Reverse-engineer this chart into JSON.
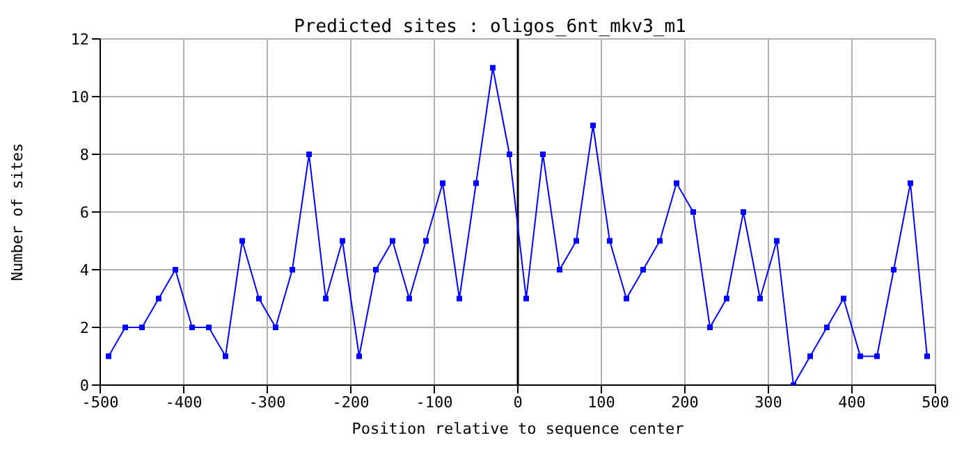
{
  "chart_data": {
    "type": "line",
    "title": "Predicted sites : oligos_6nt_mkv3_m1",
    "xlabel": "Position relative to sequence center",
    "ylabel": "Number of sites",
    "x": [
      -490,
      -470,
      -450,
      -430,
      -410,
      -390,
      -370,
      -350,
      -330,
      -310,
      -290,
      -270,
      -250,
      -230,
      -210,
      -190,
      -170,
      -150,
      -130,
      -110,
      -90,
      -70,
      -50,
      -30,
      -10,
      10,
      30,
      50,
      70,
      90,
      110,
      130,
      150,
      170,
      190,
      210,
      230,
      250,
      270,
      290,
      310,
      330,
      350,
      370,
      390,
      410,
      430,
      450,
      470,
      490
    ],
    "series": [
      {
        "color": "#0000ff",
        "values": [
          1,
          2,
          2,
          3,
          4,
          2,
          2,
          1,
          5,
          3,
          2,
          4,
          8,
          3,
          5,
          1,
          4,
          5,
          3,
          5,
          7,
          3,
          7,
          11,
          8,
          3,
          8,
          4,
          5,
          9,
          5,
          3,
          4,
          5,
          7,
          6,
          2,
          3,
          6,
          3,
          5,
          0,
          1,
          2,
          3,
          1,
          1,
          4,
          7,
          1
        ]
      }
    ],
    "xlim": [
      -500,
      500
    ],
    "xticks": [
      -500,
      -400,
      -300,
      -200,
      -100,
      0,
      100,
      200,
      300,
      400,
      500
    ],
    "ylim": [
      0,
      12
    ],
    "yticks": [
      0,
      2,
      4,
      6,
      8,
      10,
      12
    ],
    "ref_lines": [
      {
        "axis": "x",
        "value": 0,
        "color": "#000000"
      }
    ],
    "grid": true,
    "marker": "square",
    "line_style": "solid"
  }
}
